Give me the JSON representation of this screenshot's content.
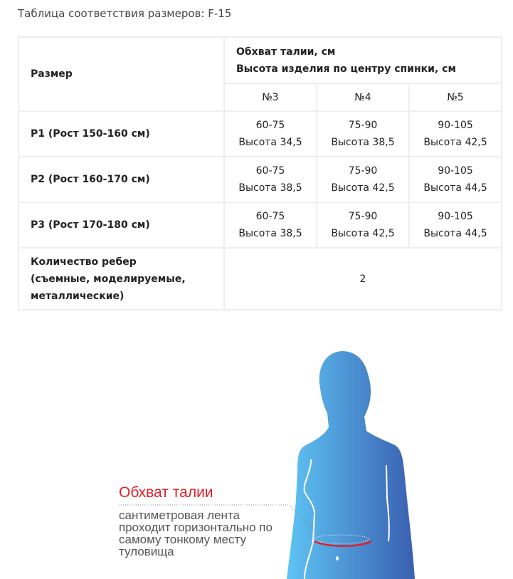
{
  "title": "Таблица соответствия размеров: F-15",
  "table": {
    "size_header": "Размер",
    "param_header_1": "Обхват талии, см",
    "param_header_2": "Высота изделия по центру спинки, см",
    "columns": [
      "№3",
      "№4",
      "№5"
    ],
    "rows": [
      {
        "label": "P1 (Рост 150-160 см)",
        "cells": [
          [
            "60-75",
            "Высота 34,5"
          ],
          [
            "75-90",
            "Высота 38,5"
          ],
          [
            "90-105",
            "Высота 42,5"
          ]
        ]
      },
      {
        "label": "P2 (Рост 160-170 см)",
        "cells": [
          [
            "60-75",
            "Высота 38,5"
          ],
          [
            "75-90",
            "Высота 42,5"
          ],
          [
            "90-105",
            "Высота 44,5"
          ]
        ]
      },
      {
        "label": "P3 (Рост 170-180 см)",
        "cells": [
          [
            "60-75",
            "Высота 38,5"
          ],
          [
            "75-90",
            "Высота 42,5"
          ],
          [
            "90-105",
            "Высота 44,5"
          ]
        ]
      }
    ],
    "ribs_label_1": "Количество ребер",
    "ribs_label_2": "(съемные, моделируемые,",
    "ribs_label_3": "металлические)",
    "ribs_value": "2"
  },
  "figure": {
    "label": "Обхват талии",
    "description": "сантиметровая лента проходит горизонтально по самому тонкому месту туловища",
    "colors": {
      "label": "#e41e26",
      "body_light": "#5ec4f4",
      "body_dark": "#3a5fb0"
    }
  }
}
